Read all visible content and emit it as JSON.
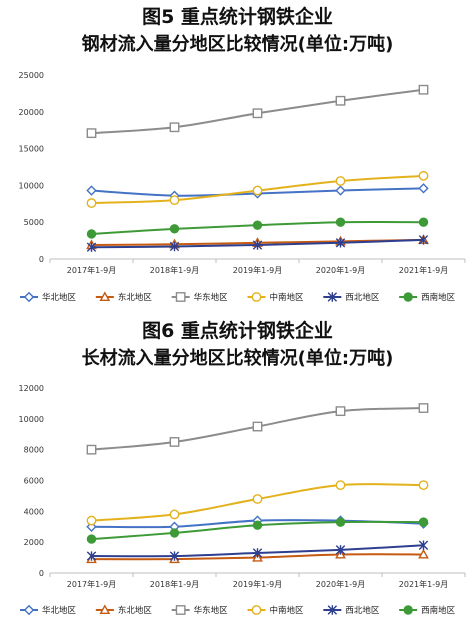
{
  "chart_data": [
    {
      "type": "line",
      "title": "图5  重点统计钢铁企业",
      "subtitle": "钢材流入量分地区比较情况(单位:万吨)",
      "categories": [
        "2017年1-9月",
        "2018年1-9月",
        "2019年1-9月",
        "2020年1-9月",
        "2021年1-9月"
      ],
      "ylim": [
        0,
        25000
      ],
      "yticks": [
        0,
        5000,
        10000,
        15000,
        20000,
        25000
      ],
      "grid": false,
      "legend_position": "bottom",
      "series": [
        {
          "name": "华北地区",
          "color": "#4472c4",
          "marker": "diamond",
          "values": [
            9300,
            8600,
            8900,
            9300,
            9600
          ]
        },
        {
          "name": "东北地区",
          "color": "#c55a11",
          "marker": "triangle",
          "values": [
            1900,
            2000,
            2200,
            2400,
            2600
          ]
        },
        {
          "name": "华东地区",
          "color": "#8c8c8c",
          "marker": "square",
          "values": [
            17100,
            17900,
            19800,
            21500,
            23000
          ]
        },
        {
          "name": "中南地区",
          "color": "#e3b11b",
          "marker": "circle",
          "values": [
            7600,
            8000,
            9300,
            10600,
            11300
          ]
        },
        {
          "name": "西北地区",
          "color": "#2e3f8f",
          "marker": "star",
          "values": [
            1600,
            1700,
            1900,
            2200,
            2600
          ]
        },
        {
          "name": "西南地区",
          "color": "#3d9a37",
          "marker": "dot",
          "values": [
            3400,
            4100,
            4600,
            5000,
            5000
          ]
        }
      ]
    },
    {
      "type": "line",
      "title": "图6  重点统计钢铁企业",
      "subtitle": "长材流入量分地区比较情况(单位:万吨)",
      "categories": [
        "2017年1-9月",
        "2018年1-9月",
        "2019年1-9月",
        "2020年1-9月",
        "2021年1-9月"
      ],
      "ylim": [
        0,
        12000
      ],
      "yticks": [
        0,
        2000,
        4000,
        6000,
        8000,
        10000,
        12000
      ],
      "grid": false,
      "legend_position": "bottom",
      "series": [
        {
          "name": "华北地区",
          "color": "#4472c4",
          "marker": "diamond",
          "values": [
            3000,
            3000,
            3400,
            3400,
            3200
          ]
        },
        {
          "name": "东北地区",
          "color": "#c55a11",
          "marker": "triangle",
          "values": [
            900,
            900,
            1000,
            1200,
            1200
          ]
        },
        {
          "name": "华东地区",
          "color": "#8c8c8c",
          "marker": "square",
          "values": [
            8000,
            8500,
            9500,
            10500,
            10700
          ]
        },
        {
          "name": "中南地区",
          "color": "#e3b11b",
          "marker": "circle",
          "values": [
            3400,
            3800,
            4800,
            5700,
            5700
          ]
        },
        {
          "name": "西北地区",
          "color": "#2e3f8f",
          "marker": "star",
          "values": [
            1100,
            1100,
            1300,
            1500,
            1800
          ]
        },
        {
          "name": "西南地区",
          "color": "#3d9a37",
          "marker": "dot",
          "values": [
            2200,
            2600,
            3100,
            3300,
            3300
          ]
        }
      ]
    }
  ]
}
